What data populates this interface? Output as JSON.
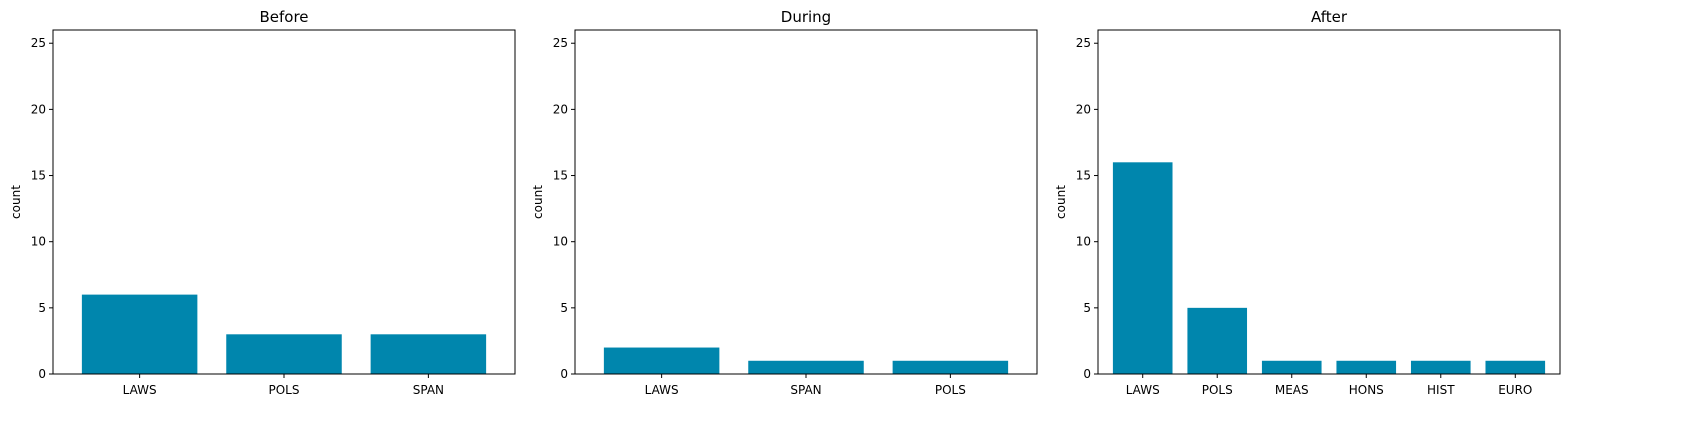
{
  "chart_data": [
    {
      "type": "bar",
      "title": "Before",
      "ylabel": "count",
      "xlabel": "",
      "categories": [
        "LAWS",
        "POLS",
        "SPAN"
      ],
      "values": [
        6,
        3,
        3
      ],
      "ylim": [
        0,
        26
      ],
      "yticks": [
        0,
        5,
        10,
        15,
        20,
        25
      ],
      "bar_color": "#0086ad"
    },
    {
      "type": "bar",
      "title": "During",
      "ylabel": "count",
      "xlabel": "",
      "categories": [
        "LAWS",
        "SPAN",
        "POLS"
      ],
      "values": [
        2,
        1,
        1
      ],
      "ylim": [
        0,
        26
      ],
      "yticks": [
        0,
        5,
        10,
        15,
        20,
        25
      ],
      "bar_color": "#0086ad"
    },
    {
      "type": "bar",
      "title": "After",
      "ylabel": "count",
      "xlabel": "",
      "categories": [
        "LAWS",
        "POLS",
        "MEAS",
        "HONS",
        "HIST",
        "EURO"
      ],
      "values": [
        16,
        5,
        1,
        1,
        1,
        1
      ],
      "ylim": [
        0,
        26
      ],
      "yticks": [
        0,
        5,
        10,
        15,
        20,
        25
      ],
      "bar_color": "#0086ad"
    }
  ]
}
